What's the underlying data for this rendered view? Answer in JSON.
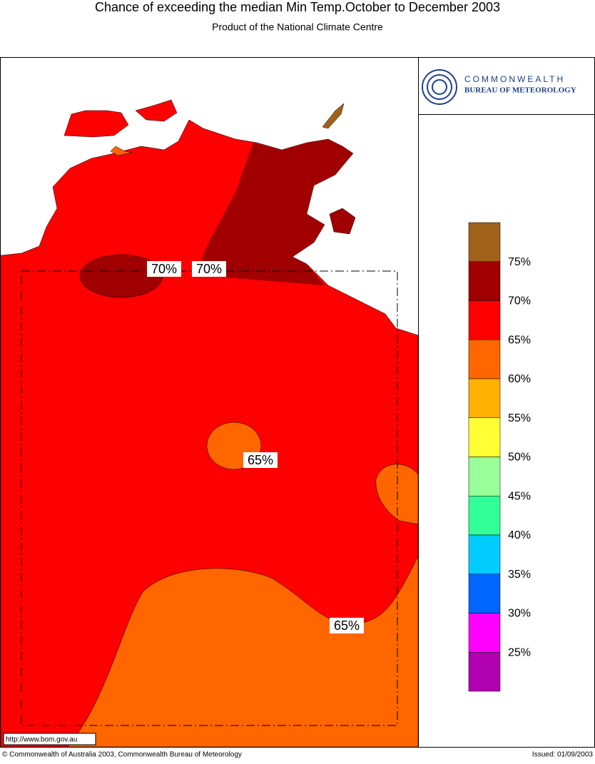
{
  "header": {
    "title": "Chance of exceeding the median Min Temp.October to December 2003",
    "subtitle": "Product of the National Climate Centre"
  },
  "logo": {
    "line1": "COMMONWEALTH",
    "line2": "BUREAU OF METEOROLOGY"
  },
  "map": {
    "contour_labels": [
      "70%",
      "70%",
      "65%",
      "65%"
    ]
  },
  "legend": {
    "colors": [
      "#a0621a",
      "#a00000",
      "#ff0000",
      "#ff6600",
      "#ffb000",
      "#ffff33",
      "#99ff99",
      "#33ff99",
      "#00ccff",
      "#0066ff",
      "#ff00ff",
      "#b000b0"
    ],
    "labels": [
      "75%",
      "70%",
      "65%",
      "60%",
      "55%",
      "50%",
      "45%",
      "40%",
      "35%",
      "30%",
      "25%"
    ]
  },
  "footer": {
    "url": "http://www.bom.gov.au",
    "copyright": "© Commonwealth of Australia 2003, Commonwealth Bureau of Meteorology",
    "issued": "Issued: 01/09/2003"
  }
}
